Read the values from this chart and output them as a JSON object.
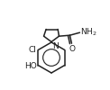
{
  "bg_color": "#ffffff",
  "line_color": "#222222",
  "line_width": 1.1,
  "font_size": 6.5,
  "fig_width": 1.22,
  "fig_height": 1.0,
  "dpi": 100,
  "xlim": [
    0,
    122
  ],
  "ylim": [
    0,
    100
  ]
}
